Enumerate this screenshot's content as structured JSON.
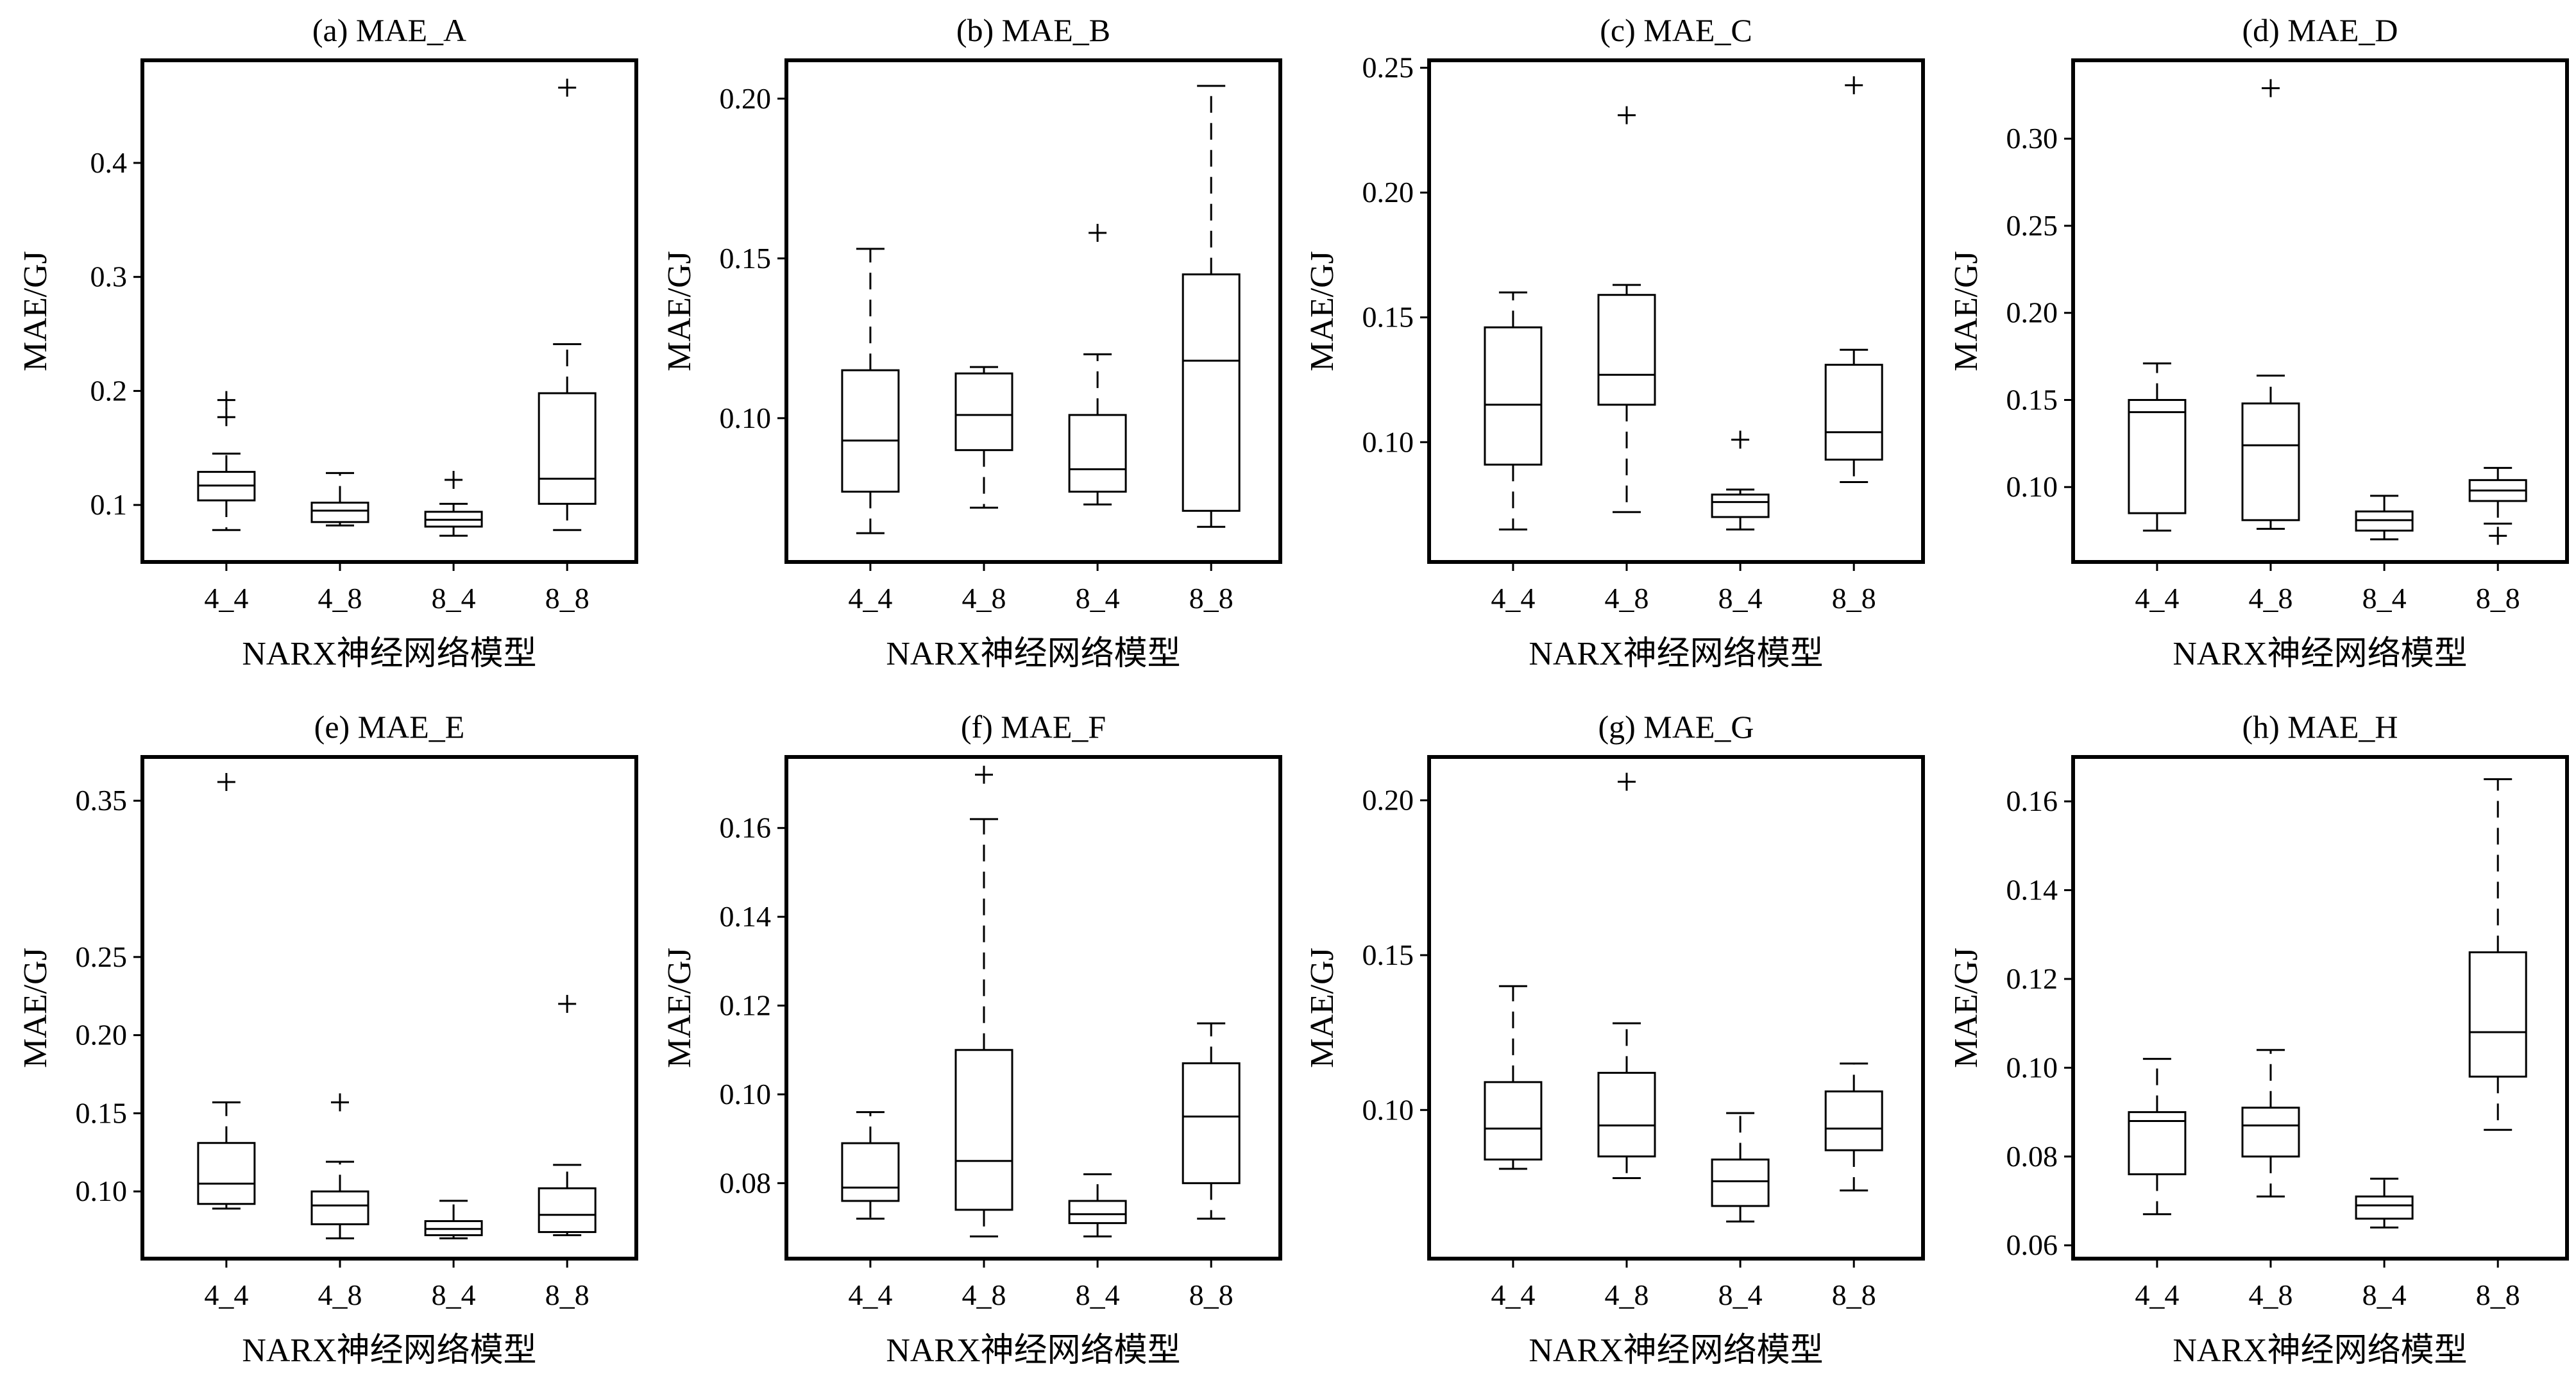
{
  "figure": {
    "categories": [
      "4_4",
      "4_8",
      "8_4",
      "8_8"
    ],
    "xlabel": "NARX神经网络模型",
    "ylabel": "MAE/GJ"
  },
  "chart_data": [
    {
      "type": "box",
      "title": "(a) MAE_A",
      "xlabel": "NARX神经网络模型",
      "ylabel": "MAE/GJ",
      "categories": [
        "4_4",
        "4_8",
        "8_4",
        "8_8"
      ],
      "ylim": [
        0.05,
        0.49
      ],
      "yticks": [
        0.1,
        0.2,
        0.3,
        0.4
      ],
      "ytick_labels": [
        "0.1",
        "0.2",
        "0.3",
        "0.4"
      ],
      "boxes": [
        {
          "category": "4_4",
          "whisker_low": 0.078,
          "q1": 0.104,
          "median": 0.117,
          "q3": 0.129,
          "whisker_high": 0.145,
          "outliers": [
            0.177,
            0.192
          ]
        },
        {
          "category": "4_8",
          "whisker_low": 0.082,
          "q1": 0.085,
          "median": 0.095,
          "q3": 0.102,
          "whisker_high": 0.128,
          "outliers": []
        },
        {
          "category": "8_4",
          "whisker_low": 0.073,
          "q1": 0.081,
          "median": 0.087,
          "q3": 0.094,
          "whisker_high": 0.101,
          "outliers": [
            0.122
          ]
        },
        {
          "category": "8_8",
          "whisker_low": 0.078,
          "q1": 0.101,
          "median": 0.123,
          "q3": 0.198,
          "whisker_high": 0.241,
          "outliers": [
            0.466
          ]
        }
      ]
    },
    {
      "type": "box",
      "title": "(b) MAE_B",
      "xlabel": "NARX神经网络模型",
      "ylabel": "MAE/GJ",
      "categories": [
        "4_4",
        "4_8",
        "8_4",
        "8_8"
      ],
      "ylim": [
        0.055,
        0.212
      ],
      "yticks": [
        0.1,
        0.15,
        0.2
      ],
      "ytick_labels": [
        "0.10",
        "0.15",
        "0.20"
      ],
      "boxes": [
        {
          "category": "4_4",
          "whisker_low": 0.064,
          "q1": 0.077,
          "median": 0.093,
          "q3": 0.115,
          "whisker_high": 0.153,
          "outliers": []
        },
        {
          "category": "4_8",
          "whisker_low": 0.072,
          "q1": 0.09,
          "median": 0.101,
          "q3": 0.114,
          "whisker_high": 0.116,
          "outliers": []
        },
        {
          "category": "8_4",
          "whisker_low": 0.073,
          "q1": 0.077,
          "median": 0.084,
          "q3": 0.101,
          "whisker_high": 0.12,
          "outliers": [
            0.158
          ]
        },
        {
          "category": "8_8",
          "whisker_low": 0.066,
          "q1": 0.071,
          "median": 0.118,
          "q3": 0.145,
          "whisker_high": 0.204,
          "outliers": []
        }
      ]
    },
    {
      "type": "box",
      "title": "(c) MAE_C",
      "xlabel": "NARX神经网络模型",
      "ylabel": "MAE/GJ",
      "categories": [
        "4_4",
        "4_8",
        "8_4",
        "8_8"
      ],
      "ylim": [
        0.052,
        0.253
      ],
      "yticks": [
        0.1,
        0.15,
        0.2,
        0.25
      ],
      "ytick_labels": [
        "0.10",
        "0.15",
        "0.20",
        "0.25"
      ],
      "boxes": [
        {
          "category": "4_4",
          "whisker_low": 0.065,
          "q1": 0.091,
          "median": 0.115,
          "q3": 0.146,
          "whisker_high": 0.16,
          "outliers": []
        },
        {
          "category": "4_8",
          "whisker_low": 0.072,
          "q1": 0.115,
          "median": 0.127,
          "q3": 0.159,
          "whisker_high": 0.163,
          "outliers": [
            0.231
          ]
        },
        {
          "category": "8_4",
          "whisker_low": 0.065,
          "q1": 0.07,
          "median": 0.076,
          "q3": 0.079,
          "whisker_high": 0.081,
          "outliers": [
            0.101
          ]
        },
        {
          "category": "8_8",
          "whisker_low": 0.084,
          "q1": 0.093,
          "median": 0.104,
          "q3": 0.131,
          "whisker_high": 0.137,
          "outliers": [
            0.243
          ]
        }
      ]
    },
    {
      "type": "box",
      "title": "(d) MAE_D",
      "xlabel": "NARX神经网络模型",
      "ylabel": "MAE/GJ",
      "categories": [
        "4_4",
        "4_8",
        "8_4",
        "8_8"
      ],
      "ylim": [
        0.057,
        0.345
      ],
      "yticks": [
        0.1,
        0.15,
        0.2,
        0.25,
        0.3
      ],
      "ytick_labels": [
        "0.10",
        "0.15",
        "0.20",
        "0.25",
        "0.30"
      ],
      "boxes": [
        {
          "category": "4_4",
          "whisker_low": 0.075,
          "q1": 0.085,
          "median": 0.143,
          "q3": 0.15,
          "whisker_high": 0.171,
          "outliers": []
        },
        {
          "category": "4_8",
          "whisker_low": 0.076,
          "q1": 0.081,
          "median": 0.124,
          "q3": 0.148,
          "whisker_high": 0.164,
          "outliers": [
            0.329
          ]
        },
        {
          "category": "8_4",
          "whisker_low": 0.07,
          "q1": 0.075,
          "median": 0.081,
          "q3": 0.086,
          "whisker_high": 0.095,
          "outliers": []
        },
        {
          "category": "8_8",
          "whisker_low": 0.079,
          "q1": 0.092,
          "median": 0.098,
          "q3": 0.104,
          "whisker_high": 0.111,
          "outliers": [
            0.072
          ]
        }
      ]
    },
    {
      "type": "box",
      "title": "(e) MAE_E",
      "xlabel": "NARX神经网络模型",
      "ylabel": "MAE/GJ",
      "categories": [
        "4_4",
        "4_8",
        "8_4",
        "8_8"
      ],
      "ylim": [
        0.057,
        0.378
      ],
      "yticks": [
        0.1,
        0.15,
        0.2,
        0.25,
        0.35
      ],
      "ytick_labels": [
        "0.10",
        "0.15",
        "0.20",
        "0.25",
        "0.35"
      ],
      "boxes": [
        {
          "category": "4_4",
          "whisker_low": 0.089,
          "q1": 0.092,
          "median": 0.105,
          "q3": 0.131,
          "whisker_high": 0.157,
          "outliers": [
            0.362
          ]
        },
        {
          "category": "4_8",
          "whisker_low": 0.07,
          "q1": 0.079,
          "median": 0.091,
          "q3": 0.1,
          "whisker_high": 0.119,
          "outliers": [
            0.157
          ]
        },
        {
          "category": "8_4",
          "whisker_low": 0.07,
          "q1": 0.072,
          "median": 0.076,
          "q3": 0.081,
          "whisker_high": 0.094,
          "outliers": []
        },
        {
          "category": "8_8",
          "whisker_low": 0.072,
          "q1": 0.074,
          "median": 0.085,
          "q3": 0.102,
          "whisker_high": 0.117,
          "outliers": [
            0.22
          ]
        }
      ]
    },
    {
      "type": "box",
      "title": "(f) MAE_F",
      "xlabel": "NARX神经网络模型",
      "ylabel": "MAE/GJ",
      "categories": [
        "4_4",
        "4_8",
        "8_4",
        "8_8"
      ],
      "ylim": [
        0.063,
        0.176
      ],
      "yticks": [
        0.08,
        0.1,
        0.12,
        0.14,
        0.16
      ],
      "ytick_labels": [
        "0.08",
        "0.10",
        "0.12",
        "0.14",
        "0.16"
      ],
      "boxes": [
        {
          "category": "4_4",
          "whisker_low": 0.072,
          "q1": 0.076,
          "median": 0.079,
          "q3": 0.089,
          "whisker_high": 0.096,
          "outliers": []
        },
        {
          "category": "4_8",
          "whisker_low": 0.068,
          "q1": 0.074,
          "median": 0.085,
          "q3": 0.11,
          "whisker_high": 0.162,
          "outliers": [
            0.172
          ]
        },
        {
          "category": "8_4",
          "whisker_low": 0.068,
          "q1": 0.071,
          "median": 0.073,
          "q3": 0.076,
          "whisker_high": 0.082,
          "outliers": []
        },
        {
          "category": "8_8",
          "whisker_low": 0.072,
          "q1": 0.08,
          "median": 0.095,
          "q3": 0.107,
          "whisker_high": 0.116,
          "outliers": []
        }
      ]
    },
    {
      "type": "box",
      "title": "(g) MAE_G",
      "xlabel": "NARX神经网络模型",
      "ylabel": "MAE/GJ",
      "categories": [
        "4_4",
        "4_8",
        "8_4",
        "8_8"
      ],
      "ylim": [
        0.052,
        0.214
      ],
      "yticks": [
        0.1,
        0.15,
        0.2
      ],
      "ytick_labels": [
        "0.10",
        "0.15",
        "0.20"
      ],
      "boxes": [
        {
          "category": "4_4",
          "whisker_low": 0.081,
          "q1": 0.084,
          "median": 0.094,
          "q3": 0.109,
          "whisker_high": 0.14,
          "outliers": []
        },
        {
          "category": "4_8",
          "whisker_low": 0.078,
          "q1": 0.085,
          "median": 0.095,
          "q3": 0.112,
          "whisker_high": 0.128,
          "outliers": [
            0.206
          ]
        },
        {
          "category": "8_4",
          "whisker_low": 0.064,
          "q1": 0.069,
          "median": 0.077,
          "q3": 0.084,
          "whisker_high": 0.099,
          "outliers": []
        },
        {
          "category": "8_8",
          "whisker_low": 0.074,
          "q1": 0.087,
          "median": 0.094,
          "q3": 0.106,
          "whisker_high": 0.115,
          "outliers": []
        }
      ]
    },
    {
      "type": "box",
      "title": "(h) MAE_H",
      "xlabel": "NARX神经网络模型",
      "ylabel": "MAE/GJ",
      "categories": [
        "4_4",
        "4_8",
        "8_4",
        "8_8"
      ],
      "ylim": [
        0.057,
        0.17
      ],
      "yticks": [
        0.06,
        0.08,
        0.1,
        0.12,
        0.14,
        0.16
      ],
      "ytick_labels": [
        "0.06",
        "0.08",
        "0.10",
        "0.12",
        "0.14",
        "0.16"
      ],
      "boxes": [
        {
          "category": "4_4",
          "whisker_low": 0.067,
          "q1": 0.076,
          "median": 0.088,
          "q3": 0.09,
          "whisker_high": 0.102,
          "outliers": []
        },
        {
          "category": "4_8",
          "whisker_low": 0.071,
          "q1": 0.08,
          "median": 0.087,
          "q3": 0.091,
          "whisker_high": 0.104,
          "outliers": []
        },
        {
          "category": "8_4",
          "whisker_low": 0.064,
          "q1": 0.066,
          "median": 0.069,
          "q3": 0.071,
          "whisker_high": 0.075,
          "outliers": []
        },
        {
          "category": "8_8",
          "whisker_low": 0.086,
          "q1": 0.098,
          "median": 0.108,
          "q3": 0.126,
          "whisker_high": 0.165,
          "outliers": []
        }
      ]
    }
  ]
}
